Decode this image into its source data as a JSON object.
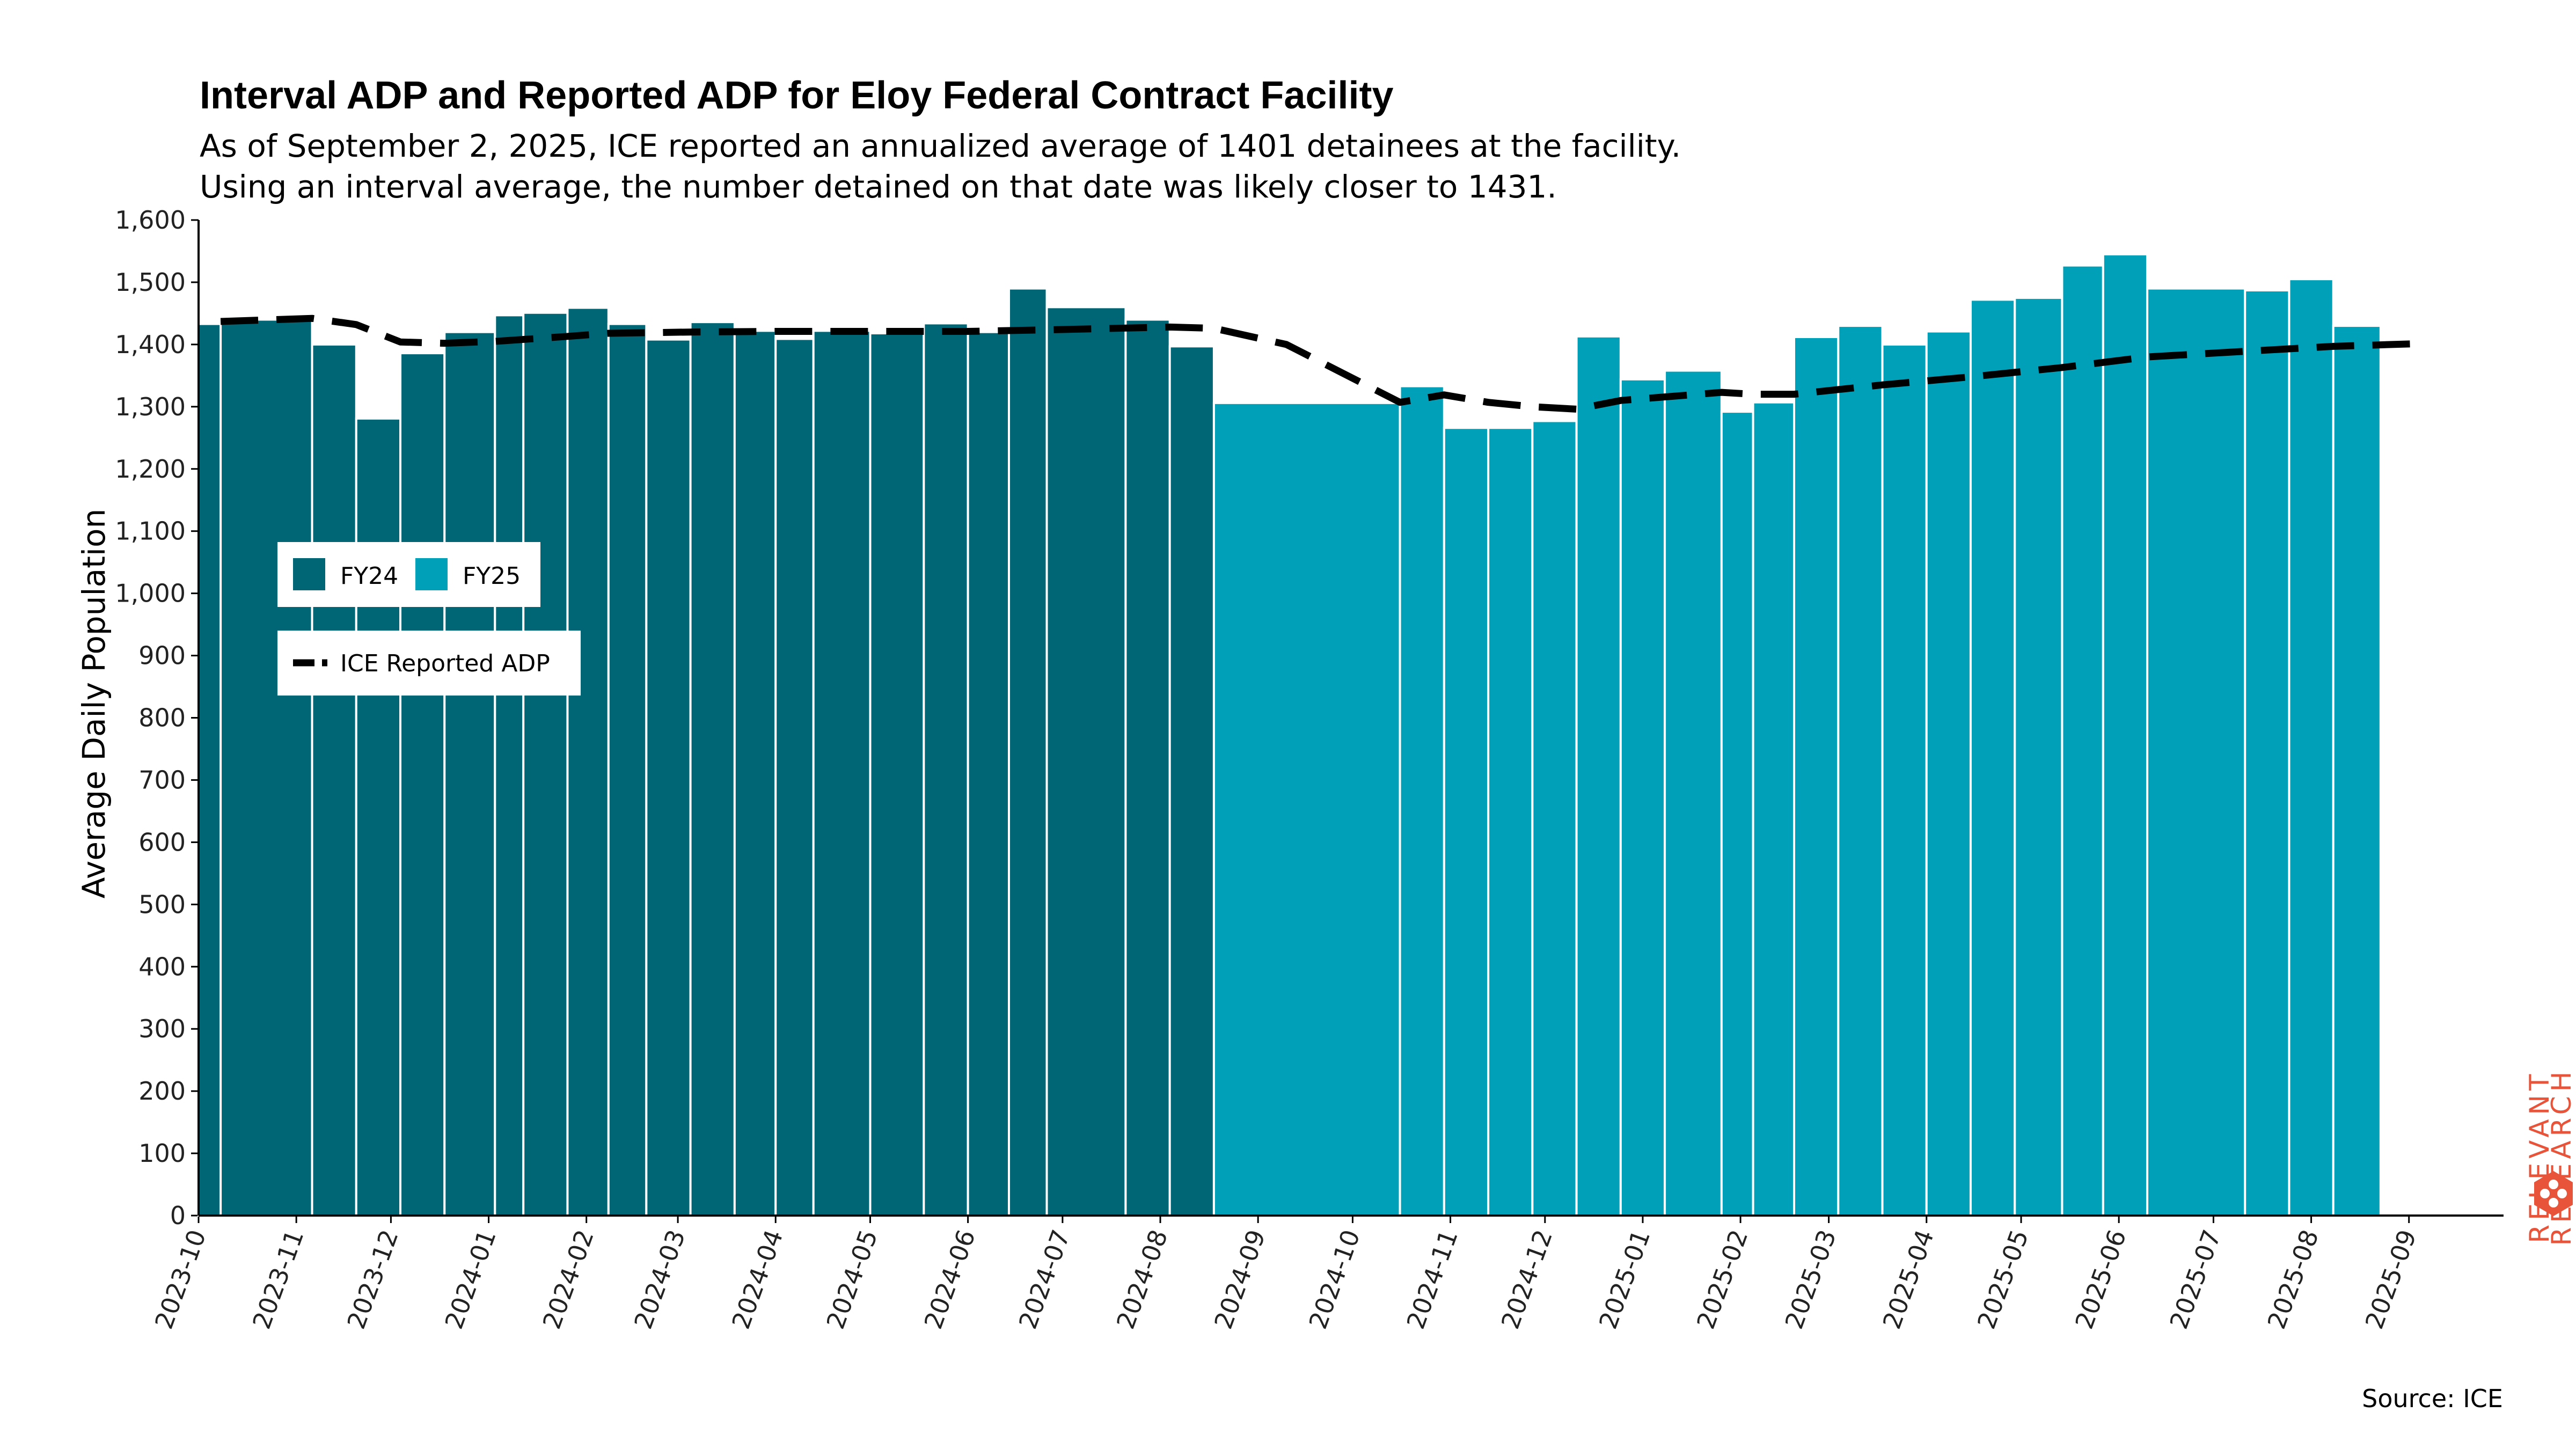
{
  "title": "Interval ADP and Reported ADP for Eloy Federal Contract Facility",
  "subtitle_lines": [
    "As of September 2, 2025, ICE reported an annualized average of 1401 detainees at the facility.",
    "Using an interval average, the number detained on that date was likely closer to 1431."
  ],
  "source": "Source: ICE",
  "logo": {
    "line1": "RELEVANT",
    "line2": "RESEARCH",
    "icon": "hexagon-dots-icon",
    "color": "#e8543a"
  },
  "colors": {
    "fy24": "#006675",
    "fy25": "#00a0b8",
    "line": "#000000",
    "text": "#000000"
  },
  "chart_data": {
    "type": "bar",
    "ylabel": "Average Daily Population",
    "xlabel": "",
    "ylim": [
      0,
      1600
    ],
    "yticks": [
      0,
      100,
      200,
      300,
      400,
      500,
      600,
      700,
      800,
      900,
      1000,
      1100,
      1200,
      1300,
      1400,
      1500,
      1600
    ],
    "ytick_labels": [
      "0",
      "100",
      "200",
      "300",
      "400",
      "500",
      "600",
      "700",
      "800",
      "900",
      "1,000",
      "1,100",
      "1,200",
      "1,300",
      "1,400",
      "1,500",
      "1,600"
    ],
    "xlim": [
      "2023-10-01",
      "2025-10-01"
    ],
    "xticks": [
      "2023-10-01",
      "2023-11-01",
      "2023-12-01",
      "2024-01-01",
      "2024-02-01",
      "2024-03-01",
      "2024-04-01",
      "2024-05-01",
      "2024-06-01",
      "2024-07-01",
      "2024-08-01",
      "2024-09-01",
      "2024-10-01",
      "2024-11-01",
      "2024-12-01",
      "2025-01-01",
      "2025-02-01",
      "2025-03-01",
      "2025-04-01",
      "2025-05-01",
      "2025-06-01",
      "2025-07-01",
      "2025-08-01",
      "2025-09-01"
    ],
    "xtick_labels": [
      "2023-10",
      "2023-11",
      "2023-12",
      "2024-01",
      "2024-02",
      "2024-03",
      "2024-04",
      "2024-05",
      "2024-06",
      "2024-07",
      "2024-08",
      "2024-09",
      "2024-10",
      "2024-11",
      "2024-12",
      "2025-01",
      "2025-02",
      "2025-03",
      "2025-04",
      "2025-05",
      "2025-06",
      "2025-07",
      "2025-08",
      "2025-09"
    ],
    "legend": {
      "bars": [
        "FY24",
        "FY25"
      ],
      "line": "ICE Reported ADP",
      "placement": "left-middle"
    },
    "bars": [
      {
        "start": "2023-10-01",
        "end": "2023-10-08",
        "value": 1433,
        "series": "FY24"
      },
      {
        "start": "2023-10-08",
        "end": "2023-11-06",
        "value": 1440,
        "series": "FY24"
      },
      {
        "start": "2023-11-06",
        "end": "2023-11-20",
        "value": 1400,
        "series": "FY24"
      },
      {
        "start": "2023-11-20",
        "end": "2023-12-04",
        "value": 1281,
        "series": "FY24"
      },
      {
        "start": "2023-12-04",
        "end": "2023-12-18",
        "value": 1386,
        "series": "FY24"
      },
      {
        "start": "2023-12-18",
        "end": "2024-01-03",
        "value": 1420,
        "series": "FY24"
      },
      {
        "start": "2024-01-03",
        "end": "2024-01-12",
        "value": 1447,
        "series": "FY24"
      },
      {
        "start": "2024-01-12",
        "end": "2024-01-26",
        "value": 1451,
        "series": "FY24"
      },
      {
        "start": "2024-01-26",
        "end": "2024-02-08",
        "value": 1459,
        "series": "FY24"
      },
      {
        "start": "2024-02-08",
        "end": "2024-02-20",
        "value": 1433,
        "series": "FY24"
      },
      {
        "start": "2024-02-20",
        "end": "2024-03-05",
        "value": 1408,
        "series": "FY24"
      },
      {
        "start": "2024-03-05",
        "end": "2024-03-19",
        "value": 1436,
        "series": "FY24"
      },
      {
        "start": "2024-03-19",
        "end": "2024-04-01",
        "value": 1422,
        "series": "FY24"
      },
      {
        "start": "2024-04-01",
        "end": "2024-04-13",
        "value": 1409,
        "series": "FY24"
      },
      {
        "start": "2024-04-13",
        "end": "2024-05-01",
        "value": 1422,
        "series": "FY24"
      },
      {
        "start": "2024-05-01",
        "end": "2024-05-18",
        "value": 1418,
        "series": "FY24"
      },
      {
        "start": "2024-05-18",
        "end": "2024-06-01",
        "value": 1434,
        "series": "FY24"
      },
      {
        "start": "2024-06-01",
        "end": "2024-06-14",
        "value": 1420,
        "series": "FY24"
      },
      {
        "start": "2024-06-14",
        "end": "2024-06-26",
        "value": 1490,
        "series": "FY24"
      },
      {
        "start": "2024-06-26",
        "end": "2024-07-21",
        "value": 1460,
        "series": "FY24"
      },
      {
        "start": "2024-07-21",
        "end": "2024-08-04",
        "value": 1440,
        "series": "FY24"
      },
      {
        "start": "2024-08-04",
        "end": "2024-08-18",
        "value": 1397,
        "series": "FY24"
      },
      {
        "start": "2024-08-18",
        "end": "2024-10-16",
        "value": 1306,
        "series": "FY25"
      },
      {
        "start": "2024-10-16",
        "end": "2024-10-30",
        "value": 1333,
        "series": "FY25"
      },
      {
        "start": "2024-10-30",
        "end": "2024-11-13",
        "value": 1266,
        "series": "FY25"
      },
      {
        "start": "2024-11-13",
        "end": "2024-11-27",
        "value": 1266,
        "series": "FY25"
      },
      {
        "start": "2024-11-27",
        "end": "2024-12-11",
        "value": 1277,
        "series": "FY25"
      },
      {
        "start": "2024-12-11",
        "end": "2024-12-25",
        "value": 1413,
        "series": "FY25"
      },
      {
        "start": "2024-12-25",
        "end": "2025-01-08",
        "value": 1344,
        "series": "FY25"
      },
      {
        "start": "2025-01-08",
        "end": "2025-01-26",
        "value": 1358,
        "series": "FY25"
      },
      {
        "start": "2025-01-26",
        "end": "2025-02-05",
        "value": 1292,
        "series": "FY25"
      },
      {
        "start": "2025-02-05",
        "end": "2025-02-18",
        "value": 1307,
        "series": "FY25"
      },
      {
        "start": "2025-02-18",
        "end": "2025-03-04",
        "value": 1412,
        "series": "FY25"
      },
      {
        "start": "2025-03-04",
        "end": "2025-03-18",
        "value": 1430,
        "series": "FY25"
      },
      {
        "start": "2025-03-18",
        "end": "2025-04-01",
        "value": 1400,
        "series": "FY25"
      },
      {
        "start": "2025-04-01",
        "end": "2025-04-15",
        "value": 1421,
        "series": "FY25"
      },
      {
        "start": "2025-04-15",
        "end": "2025-04-29",
        "value": 1472,
        "series": "FY25"
      },
      {
        "start": "2025-04-29",
        "end": "2025-05-14",
        "value": 1475,
        "series": "FY25"
      },
      {
        "start": "2025-05-14",
        "end": "2025-05-27",
        "value": 1527,
        "series": "FY25"
      },
      {
        "start": "2025-05-27",
        "end": "2025-06-10",
        "value": 1545,
        "series": "FY25"
      },
      {
        "start": "2025-06-10",
        "end": "2025-07-11",
        "value": 1490,
        "series": "FY25"
      },
      {
        "start": "2025-07-11",
        "end": "2025-07-25",
        "value": 1487,
        "series": "FY25"
      },
      {
        "start": "2025-07-25",
        "end": "2025-08-08",
        "value": 1505,
        "series": "FY25"
      },
      {
        "start": "2025-08-08",
        "end": "2025-08-23",
        "value": 1430,
        "series": "FY25"
      }
    ],
    "line_series": {
      "name": "ICE Reported ADP",
      "points": [
        [
          "2023-10-08",
          1437
        ],
        [
          "2023-11-06",
          1442
        ],
        [
          "2023-11-20",
          1432
        ],
        [
          "2023-12-04",
          1404
        ],
        [
          "2023-12-18",
          1402
        ],
        [
          "2024-01-03",
          1405
        ],
        [
          "2024-01-26",
          1413
        ],
        [
          "2024-02-08",
          1418
        ],
        [
          "2024-03-05",
          1420
        ],
        [
          "2024-04-01",
          1421
        ],
        [
          "2024-05-01",
          1421
        ],
        [
          "2024-06-01",
          1421
        ],
        [
          "2024-07-01",
          1424
        ],
        [
          "2024-08-04",
          1428
        ],
        [
          "2024-08-18",
          1426
        ],
        [
          "2024-09-10",
          1400
        ],
        [
          "2024-10-16",
          1307
        ],
        [
          "2024-10-30",
          1319
        ],
        [
          "2024-11-13",
          1307
        ],
        [
          "2024-11-27",
          1300
        ],
        [
          "2024-12-11",
          1296
        ],
        [
          "2024-12-25",
          1310
        ],
        [
          "2025-01-26",
          1323
        ],
        [
          "2025-02-05",
          1320
        ],
        [
          "2025-02-18",
          1320
        ],
        [
          "2025-03-18",
          1335
        ],
        [
          "2025-04-15",
          1348
        ],
        [
          "2025-05-14",
          1363
        ],
        [
          "2025-06-10",
          1380
        ],
        [
          "2025-07-11",
          1389
        ],
        [
          "2025-08-08",
          1397
        ],
        [
          "2025-09-02",
          1401
        ]
      ]
    }
  }
}
